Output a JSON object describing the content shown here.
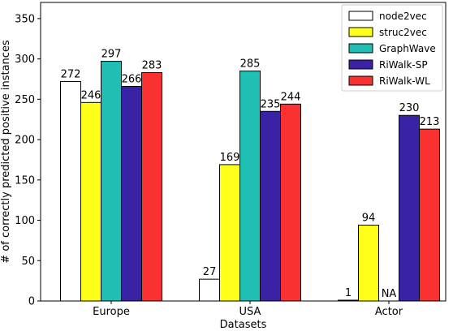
{
  "chart_data": {
    "type": "bar",
    "categories": [
      "Europe",
      "USA",
      "Actor"
    ],
    "series": [
      {
        "name": "node2vec",
        "values": [
          272,
          27,
          1
        ],
        "labels": [
          "272",
          "27",
          "1"
        ],
        "color": "#ffffff"
      },
      {
        "name": "struc2vec",
        "values": [
          246,
          169,
          94
        ],
        "labels": [
          "246",
          "169",
          "94"
        ],
        "color": "#ffff1a"
      },
      {
        "name": "GraphWave",
        "values": [
          297,
          285,
          null
        ],
        "labels": [
          "297",
          "285",
          "NA"
        ],
        "color": "#20bfb3"
      },
      {
        "name": "RiWalk-SP",
        "values": [
          266,
          235,
          230
        ],
        "labels": [
          "266",
          "235",
          "230"
        ],
        "color": "#3a22a6"
      },
      {
        "name": "RiWalk-WL",
        "values": [
          283,
          244,
          213
        ],
        "labels": [
          "283",
          "244",
          "213"
        ],
        "color": "#fb3131"
      }
    ],
    "xlabel": "Datasets",
    "ylabel": "# of correctly predicted positive instances",
    "ylim": [
      0,
      370
    ],
    "yticks": [
      0,
      50,
      100,
      150,
      200,
      250,
      300,
      350
    ],
    "grid": false,
    "legend_position": "top-right",
    "bar_edge_color": "#000000"
  }
}
